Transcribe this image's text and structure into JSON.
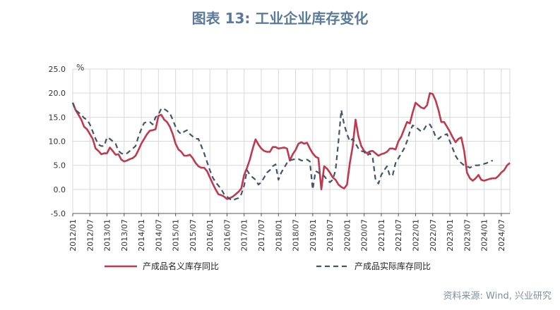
{
  "title": "图表 13: 工业企业库存变化",
  "source": "资料来源: Wind, 兴业研究",
  "chart_data": {
    "type": "line",
    "ylabel": "%",
    "ylim": [
      -5,
      25
    ],
    "yticks": [
      "25.0",
      "20.0",
      "15.0",
      "10.0",
      "5.0",
      "0.0",
      "-5.0"
    ],
    "xticks": [
      "2012/01",
      "2012/07",
      "2013/01",
      "2013/07",
      "2014/01",
      "2014/07",
      "2015/01",
      "2015/07",
      "2016/01",
      "2016/07",
      "2017/01",
      "2017/07",
      "2018/01",
      "2018/07",
      "2019/01",
      "2019/07",
      "2020/01",
      "2020/07",
      "2021/01",
      "2021/07",
      "2022/01",
      "2022/07",
      "2023/01",
      "2023/07",
      "2024/01",
      "2024/07"
    ],
    "grid": true,
    "legend_position": "bottom",
    "x_start": "2012/01",
    "series": [
      {
        "name": "产成品名义库存同比",
        "color": "#c0394e",
        "style": "solid",
        "values": [
          18.0,
          16.5,
          15.5,
          14.5,
          13.0,
          12.5,
          11.5,
          10.5,
          8.5,
          8.0,
          7.3,
          7.5,
          7.5,
          8.7,
          8.0,
          7.2,
          7.3,
          6.2,
          5.8,
          6.0,
          6.3,
          6.5,
          7.0,
          8.2,
          9.5,
          10.5,
          11.5,
          12.2,
          12.3,
          12.5,
          15.3,
          15.5,
          14.5,
          14.0,
          13.0,
          11.5,
          9.5,
          8.3,
          7.8,
          7.0,
          7.0,
          7.2,
          6.5,
          5.5,
          4.8,
          4.5,
          4.5,
          3.8,
          2.5,
          1.2,
          0.0,
          -1.0,
          -1.2,
          -1.5,
          -2.0,
          -1.8,
          -1.5,
          -1.0,
          -0.5,
          0.2,
          3.0,
          4.5,
          6.2,
          8.5,
          10.4,
          9.3,
          8.5,
          8.0,
          7.8,
          7.8,
          8.8,
          8.8,
          8.5,
          8.6,
          8.7,
          8.5,
          6.0,
          7.3,
          8.2,
          9.5,
          9.8,
          9.5,
          9.7,
          8.5,
          7.5,
          6.8,
          6.5,
          0.0,
          4.8,
          4.3,
          3.5,
          2.5,
          2.0,
          1.0,
          0.5,
          0.2,
          1.0,
          5.5,
          9.0,
          14.5,
          11.0,
          9.0,
          8.0,
          7.5,
          7.9,
          8.0,
          7.5,
          7.0,
          7.3,
          7.5,
          7.8,
          8.5,
          8.5,
          8.3,
          10.0,
          11.0,
          12.5,
          14.0,
          13.7,
          16.0,
          18.0,
          17.5,
          17.0,
          16.8,
          17.5,
          20.0,
          19.8,
          18.5,
          16.5,
          14.0,
          14.0,
          13.0,
          12.0,
          10.8,
          9.8,
          10.5,
          10.8,
          8.0,
          3.5,
          2.3,
          1.8,
          2.3,
          3.0,
          2.0,
          1.8,
          2.0,
          2.2,
          2.3,
          2.3,
          2.8,
          3.5,
          4.0,
          5.0,
          5.5
        ],
        "values_units": "percent, monthly, 2012/01–2024/08"
      },
      {
        "name": "产成品实际库存同比",
        "color": "#44546a",
        "style": "dashed",
        "values": [
          18.0,
          16.5,
          16.0,
          15.5,
          14.8,
          14.5,
          13.5,
          12.0,
          10.5,
          9.3,
          9.0,
          9.0,
          10.8,
          10.5,
          10.0,
          9.5,
          8.0,
          7.5,
          7.3,
          7.5,
          8.0,
          8.5,
          9.0,
          11.0,
          12.5,
          13.8,
          14.0,
          14.0,
          13.5,
          15.0,
          15.5,
          16.8,
          16.7,
          16.3,
          15.8,
          14.5,
          13.0,
          12.0,
          11.5,
          12.0,
          12.3,
          11.5,
          11.0,
          10.5,
          10.5,
          9.0,
          7.5,
          5.7,
          4.0,
          2.5,
          1.5,
          0.8,
          0.0,
          -1.0,
          -1.5,
          -2.0,
          -2.3,
          -2.0,
          -1.8,
          -1.0,
          0.8,
          4.0,
          3.0,
          2.5,
          2.0,
          1.0,
          1.5,
          2.5,
          3.5,
          4.0,
          4.8,
          5.2,
          2.0,
          3.5,
          4.5,
          5.5,
          6.0,
          6.2,
          6.3,
          6.3,
          6.0,
          6.0,
          6.2,
          5.8,
          0.0,
          3.8,
          3.5,
          3.0,
          2.8,
          2.0,
          1.5,
          2.0,
          4.0,
          10.0,
          16.5,
          13.5,
          11.5,
          10.0,
          10.5,
          9.5,
          8.5,
          8.0,
          7.8,
          7.0,
          7.5,
          6.5,
          2.0,
          1.2,
          3.0,
          4.0,
          4.8,
          2.8,
          3.0,
          5.5,
          6.5,
          7.5,
          8.5,
          10.0,
          12.0,
          13.3,
          13.0,
          12.5,
          12.0,
          12.5,
          13.5,
          13.5,
          12.5,
          11.0,
          10.5,
          11.0,
          11.3,
          11.5,
          10.0,
          8.5,
          7.0,
          6.0,
          5.5,
          5.0,
          4.8,
          4.5,
          4.8,
          5.0,
          5.0,
          5.2,
          5.3,
          5.5,
          5.8,
          6.0
        ],
        "values_units": "percent, monthly, 2012/01–2024/08"
      }
    ]
  }
}
